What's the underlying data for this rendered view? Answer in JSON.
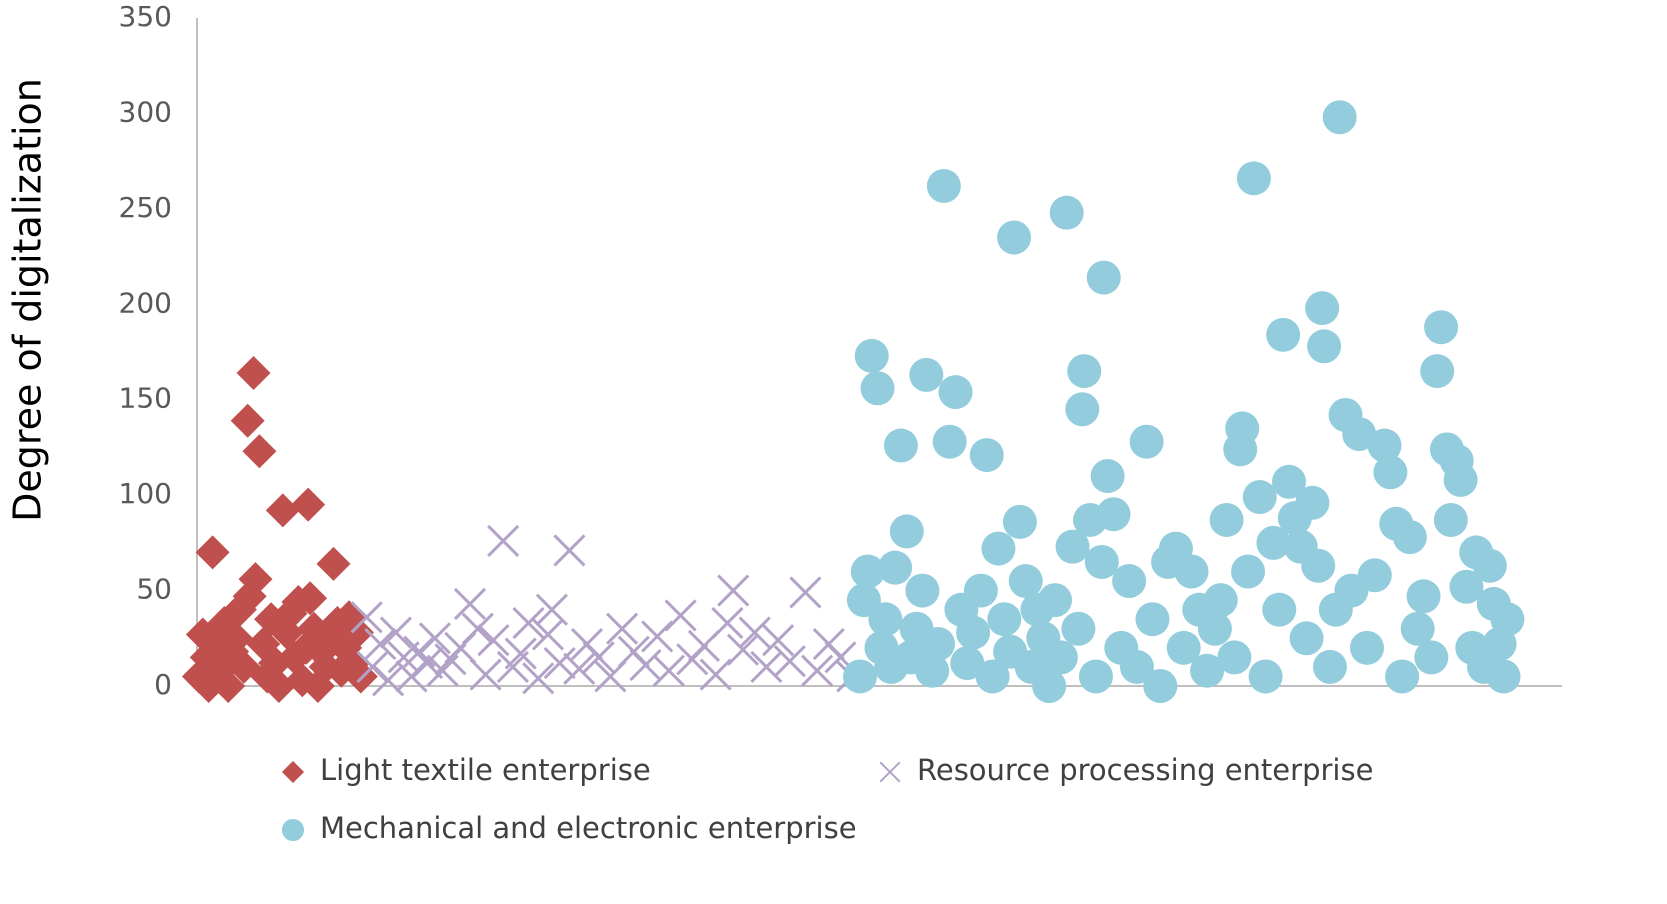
{
  "chart_data": {
    "type": "scatter",
    "y_label": "Degree of digitalization",
    "xlim": [
      0,
      700
    ],
    "ylim": [
      0,
      350
    ],
    "yticks": [
      0,
      50,
      100,
      150,
      200,
      250,
      300,
      350
    ],
    "grid": false,
    "series": [
      {
        "name": "Light textile enterprise",
        "color": "#c0504d",
        "marker": "diamond",
        "x": [
          1,
          3,
          5,
          6,
          8,
          10,
          12,
          14,
          16,
          18,
          20,
          22,
          24,
          26,
          27,
          29,
          30,
          32,
          34,
          36,
          38,
          40,
          42,
          44,
          46,
          48,
          50,
          52,
          54,
          56,
          57,
          58,
          60,
          62,
          64,
          66,
          68,
          70,
          72,
          74,
          76,
          78,
          80,
          82,
          84
        ],
        "values": [
          5,
          27,
          15,
          0,
          70,
          20,
          8,
          33,
          0,
          18,
          25,
          40,
          10,
          139,
          47,
          164,
          56,
          123,
          22,
          5,
          35,
          12,
          0,
          92,
          28,
          38,
          15,
          44,
          3,
          20,
          95,
          46,
          30,
          0,
          18,
          10,
          25,
          64,
          33,
          8,
          20,
          36,
          12,
          28,
          5
        ]
      },
      {
        "name": "Resource processing enterprise",
        "color": "#b3a2c7",
        "marker": "x",
        "x": [
          87,
          90,
          94,
          98,
          102,
          106,
          110,
          114,
          118,
          122,
          126,
          130,
          135,
          140,
          144,
          148,
          152,
          157,
          162,
          166,
          170,
          175,
          180,
          182,
          186,
          191,
          196,
          200,
          206,
          212,
          218,
          224,
          230,
          236,
          242,
          248,
          254,
          260,
          266,
          272,
          275,
          280,
          286,
          292,
          298,
          304,
          312,
          318,
          324,
          330,
          336
        ],
        "values": [
          36,
          10,
          22,
          3,
          28,
          15,
          5,
          18,
          12,
          25,
          8,
          14,
          20,
          43,
          30,
          6,
          24,
          76,
          10,
          17,
          33,
          4,
          27,
          40,
          12,
          71,
          9,
          22,
          15,
          5,
          30,
          18,
          11,
          26,
          8,
          37,
          14,
          21,
          6,
          33,
          50,
          19,
          28,
          10,
          24,
          13,
          49,
          8,
          22,
          15,
          5
        ]
      },
      {
        "name": "Mechanical and electronic enterprise",
        "color": "#93cddd",
        "marker": "circle",
        "x": [
          340,
          342,
          344,
          346,
          349,
          351,
          353,
          356,
          358,
          361,
          364,
          366,
          369,
          372,
          374,
          377,
          380,
          383,
          386,
          389,
          392,
          395,
          398,
          402,
          405,
          408,
          411,
          414,
          417,
          419,
          422,
          425,
          428,
          431,
          434,
          437,
          440,
          443,
          446,
          449,
          452,
          454,
          455,
          458,
          461,
          464,
          465,
          467,
          470,
          474,
          478,
          482,
          487,
          490,
          494,
          498,
          502,
          506,
          510,
          514,
          518,
          522,
          525,
          528,
          532,
          535,
          536,
          539,
          542,
          545,
          548,
          552,
          555,
          557,
          560,
          563,
          566,
          569,
          572,
          575,
          577,
          578,
          581,
          584,
          586,
          589,
          592,
          596,
          600,
          604,
          609,
          612,
          615,
          618,
          622,
          626,
          629,
          633,
          636,
          638,
          641,
          643,
          646,
          648,
          651,
          654,
          656,
          660,
          663,
          665,
          668,
          670,
          672
        ],
        "values": [
          5,
          45,
          60,
          173,
          156,
          20,
          35,
          10,
          62,
          126,
          81,
          15,
          30,
          50,
          163,
          8,
          22,
          262,
          128,
          154,
          40,
          12,
          28,
          50,
          121,
          5,
          72,
          35,
          18,
          235,
          86,
          55,
          10,
          40,
          25,
          0,
          45,
          15,
          248,
          73,
          30,
          145,
          165,
          87,
          5,
          65,
          214,
          110,
          90,
          20,
          55,
          10,
          128,
          35,
          0,
          65,
          72,
          20,
          60,
          40,
          8,
          30,
          45,
          87,
          15,
          124,
          135,
          60,
          266,
          99,
          5,
          75,
          40,
          184,
          107,
          88,
          73,
          25,
          96,
          63,
          198,
          178,
          10,
          40,
          298,
          142,
          50,
          132,
          20,
          58,
          126,
          112,
          85,
          5,
          78,
          30,
          47,
          15,
          165,
          188,
          124,
          87,
          118,
          108,
          52,
          20,
          70,
          10,
          63,
          43,
          22,
          5,
          35
        ]
      }
    ]
  }
}
